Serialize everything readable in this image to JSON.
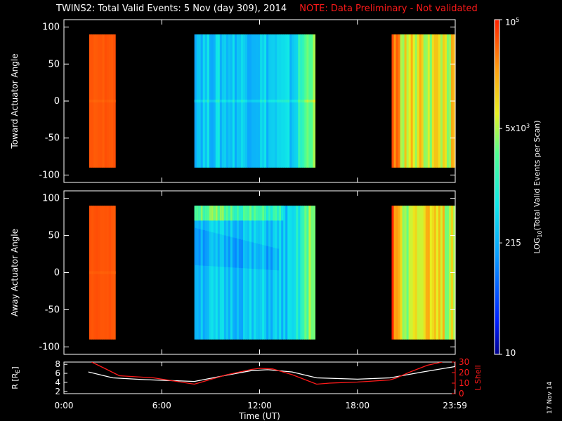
{
  "title": {
    "main": "TWINS2: Total Valid Events:  5 Nov (day 309), 2014",
    "note": "NOTE: Data Preliminary - Not validated"
  },
  "stamp": "17 Nov 14",
  "colors": {
    "background": "#000000",
    "axes": "#ffffff",
    "note": "#ff1a1a",
    "r_line": "#ffffff",
    "lshell_line": "#ff1a1a"
  },
  "chart_data": [
    {
      "type": "heatmap",
      "name": "toward",
      "ylabel": "Toward Actuator Angle",
      "ylim": [
        -110,
        110
      ],
      "yticks": [
        100,
        50,
        0,
        -50,
        -100
      ],
      "xlim": [
        0,
        24
      ],
      "angle_range": [
        -90,
        90
      ],
      "segments": [
        {
          "start": 1.55,
          "end": 3.15,
          "level": 4.75,
          "stripe_var": 0.04,
          "center_bump": -0.05
        },
        {
          "start": 8.0,
          "end": 15.4,
          "level": 2.55,
          "stripe_var": 0.3,
          "edge_ramp": 1.25,
          "center_bump": 0.25
        },
        {
          "start": 20.1,
          "end": 24.0,
          "level": 3.9,
          "stripe_var": 0.45,
          "lead_ramp": 0.9
        }
      ]
    },
    {
      "type": "heatmap",
      "name": "away",
      "ylabel": "Away Actuator Angle",
      "ylim": [
        -110,
        110
      ],
      "yticks": [
        100,
        50,
        0,
        -50,
        -100
      ],
      "xlim": [
        0,
        24
      ],
      "angle_range": [
        -90,
        90
      ],
      "segments": [
        {
          "start": 1.55,
          "end": 3.15,
          "level": 4.75,
          "stripe_var": 0.04,
          "center_bump": -0.05
        },
        {
          "start": 8.0,
          "end": 15.4,
          "level": 2.5,
          "stripe_var": 0.3,
          "edge_ramp": 1.25,
          "top_band": 1.0,
          "arc": 0.55
        },
        {
          "start": 20.1,
          "end": 24.0,
          "level": 3.9,
          "stripe_var": 0.45,
          "lead_ramp": 0.9
        }
      ]
    },
    {
      "type": "line",
      "name": "ephemeris",
      "xlabel": "Time (UT)",
      "xlim": [
        0,
        24
      ],
      "xticks": [
        0,
        6,
        12,
        18,
        23.983
      ],
      "xtick_labels": [
        "0:00",
        "6:00",
        "12:00",
        "18:00",
        "23:59"
      ],
      "left_axis": {
        "label": "R [RE]",
        "label_text": "R [R",
        "label_sub": "E",
        "label_end": "]",
        "ylim": [
          1.5,
          8.5
        ],
        "ticks": [
          2,
          4,
          6,
          8
        ]
      },
      "right_axis": {
        "label": "L Shell",
        "ylim": [
          0,
          30
        ],
        "ticks": [
          0,
          10,
          20,
          30
        ]
      },
      "series": [
        {
          "name": "R",
          "axis": "left",
          "x": [
            1.5,
            3.0,
            5.0,
            8.0,
            10.0,
            11.5,
            12.5,
            14.0,
            15.5,
            18.0,
            20.0,
            22.0,
            24.0
          ],
          "y": [
            6.3,
            5.0,
            4.6,
            4.2,
            5.6,
            6.6,
            6.8,
            6.3,
            5.0,
            4.7,
            5.0,
            6.3,
            7.5
          ]
        },
        {
          "name": "L Shell",
          "axis": "right",
          "x": [
            1.7,
            2.5,
            3.4,
            5.5,
            8.0,
            10.0,
            11.5,
            12.0,
            12.8,
            14.0,
            15.5,
            16.3,
            18.0,
            20.0,
            20.4,
            21.3,
            22.3,
            23.2
          ],
          "y": [
            30,
            24,
            17,
            15,
            9,
            18,
            23,
            24,
            23.5,
            18,
            9,
            10,
            11,
            13,
            15,
            21,
            27,
            30
          ]
        }
      ]
    }
  ],
  "colorbar": {
    "label": "LOG10(Total Valid Events per Scan)",
    "label_main": "LOG",
    "label_sub": "10",
    "label_rest": "(Total Valid Events per Scan)",
    "range_log10": [
      1,
      5
    ],
    "ticks": [
      {
        "base": "10",
        "exp": "5",
        "log": 5
      },
      {
        "base": "5x10",
        "exp": "3",
        "log": 3.699
      },
      {
        "base": "215",
        "exp": "",
        "log": 2.332
      },
      {
        "base": "10",
        "exp": "",
        "log": 1
      }
    ]
  }
}
